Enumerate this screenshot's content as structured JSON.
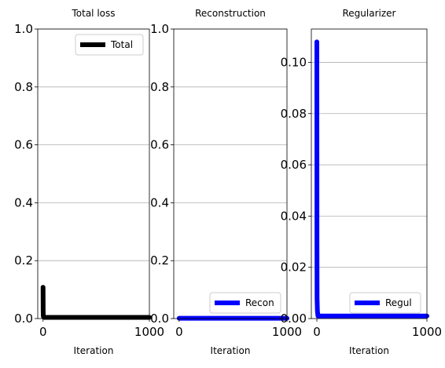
{
  "chart_data": [
    {
      "type": "line",
      "title": "Total loss",
      "xlabel": "Iteration",
      "ylabel": "",
      "xlim": [
        -50,
        1000
      ],
      "ylim": [
        0,
        1.0
      ],
      "xticks": [
        0,
        1000
      ],
      "xtick_labels": [
        "0",
        "1000"
      ],
      "yticks": [
        0.0,
        0.2,
        0.4,
        0.6,
        0.8,
        1.0
      ],
      "ytick_labels": [
        "0.0",
        "0.2",
        "0.4",
        "0.6",
        "0.8",
        "1.0"
      ],
      "grid": "y",
      "legend_position": "upper-right",
      "series": [
        {
          "name": "Total",
          "color": "#000000",
          "x": [
            0,
            1,
            2,
            5,
            10,
            50,
            100,
            200,
            400,
            600,
            800,
            1000
          ],
          "y": [
            0.108,
            0.03,
            0.01,
            0.005,
            0.004,
            0.004,
            0.004,
            0.004,
            0.004,
            0.004,
            0.004,
            0.004
          ]
        }
      ]
    },
    {
      "type": "line",
      "title": "Reconstruction",
      "xlabel": "Iteration",
      "ylabel": "",
      "xlim": [
        -50,
        1000
      ],
      "ylim": [
        0,
        1.0
      ],
      "xticks": [
        0,
        1000
      ],
      "xtick_labels": [
        "0",
        "1000"
      ],
      "yticks": [
        0.0,
        0.2,
        0.4,
        0.6,
        0.8,
        1.0
      ],
      "ytick_labels": [
        "0.0",
        "0.2",
        "0.4",
        "0.6",
        "0.8",
        "1.0"
      ],
      "grid": "y",
      "legend_position": "lower-right",
      "series": [
        {
          "name": "Recon",
          "color": "#0000ff",
          "x": [
            0,
            1,
            2,
            5,
            10,
            50,
            100,
            200,
            400,
            600,
            800,
            1000
          ],
          "y": [
            0.001,
            0.001,
            0.001,
            0.001,
            0.001,
            0.001,
            0.001,
            0.001,
            0.001,
            0.001,
            0.001,
            0.001
          ]
        }
      ]
    },
    {
      "type": "line",
      "title": "Regularizer",
      "xlabel": "Iteration",
      "ylabel": "",
      "xlim": [
        -50,
        1000
      ],
      "ylim": [
        0,
        0.113
      ],
      "xticks": [
        0,
        1000
      ],
      "xtick_labels": [
        "0",
        "1000"
      ],
      "yticks": [
        0.0,
        0.02,
        0.04,
        0.06,
        0.08,
        0.1
      ],
      "ytick_labels": [
        "0.00",
        "0.02",
        "0.04",
        "0.06",
        "0.08",
        "0.10"
      ],
      "grid": "y",
      "legend_position": "lower-right",
      "series": [
        {
          "name": "Regul",
          "color": "#0000ff",
          "x": [
            0,
            1,
            2,
            5,
            10,
            50,
            100,
            200,
            400,
            600,
            800,
            1000
          ],
          "y": [
            0.108,
            0.03,
            0.008,
            0.003,
            0.001,
            0.001,
            0.001,
            0.001,
            0.001,
            0.001,
            0.001,
            0.001
          ]
        }
      ]
    }
  ]
}
